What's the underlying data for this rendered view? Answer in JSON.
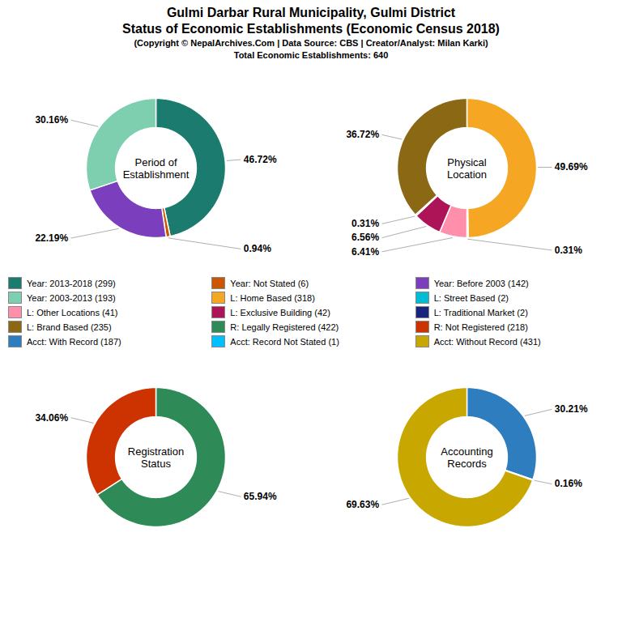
{
  "title": "Gulmi Darbar Rural Municipality, Gulmi District\nStatus of Economic Establishments (Economic Census 2018)",
  "subtitle": "(Copyright © NepalArchives.Com | Data Source: CBS | Creator/Analyst: Milan Karki)\nTotal Economic Establishments: 640",
  "legend": "center",
  "chart_data": [
    {
      "type": "pie",
      "title": "Period of\nEstablishment",
      "categories": [
        "Year: 2013-2018 (299)",
        "Year: Not Stated (6)",
        "Year: Before 2003 (142)",
        "Year: 2003-2013 (193)"
      ],
      "values": [
        46.72,
        0.94,
        22.19,
        30.16
      ],
      "value_labels": [
        "46.72%",
        "0.94%",
        "22.19%",
        "30.16%"
      ],
      "colors": [
        "#1B7B6E",
        "#CC5500",
        "#7B3FBE",
        "#7ECFB0"
      ],
      "data_labels": true
    },
    {
      "type": "pie",
      "title": "Physical\nLocation",
      "categories": [
        "L: Home Based (318)",
        "L: Street Based (2)",
        "L: Other Locations (41)",
        "L: Exclusive Building (42)",
        "L: Traditional Market (2)",
        "L: Brand Based (235)"
      ],
      "values": [
        49.69,
        0.31,
        6.41,
        6.56,
        0.31,
        36.72
      ],
      "value_labels": [
        "49.69%",
        "0.31%",
        "6.41%",
        "6.56%",
        "0.31%",
        "36.72%"
      ],
      "colors": [
        "#F5A623",
        "#00BCD4",
        "#FF8FAB",
        "#AD1457",
        "#1A237E",
        "#8B6914"
      ],
      "data_labels": true
    },
    {
      "type": "pie",
      "title": "Registration\nStatus",
      "categories": [
        "R: Legally Registered (422)",
        "R: Not Registered (218)"
      ],
      "values": [
        65.94,
        34.06
      ],
      "value_labels": [
        "65.94%",
        "34.06%"
      ],
      "colors": [
        "#2E8B57",
        "#CC3300"
      ],
      "data_labels": true
    },
    {
      "type": "pie",
      "title": "Accounting\nRecords",
      "categories": [
        "Acct: With Record (187)",
        "Acct: Record Not Stated (1)",
        "Acct: Without Record (431)"
      ],
      "values": [
        30.21,
        0.16,
        69.63
      ],
      "value_labels": [
        "30.21%",
        "0.16%",
        "69.63%"
      ],
      "colors": [
        "#2E7DBF",
        "#00BFFF",
        "#C8A800"
      ],
      "data_labels": true
    }
  ]
}
